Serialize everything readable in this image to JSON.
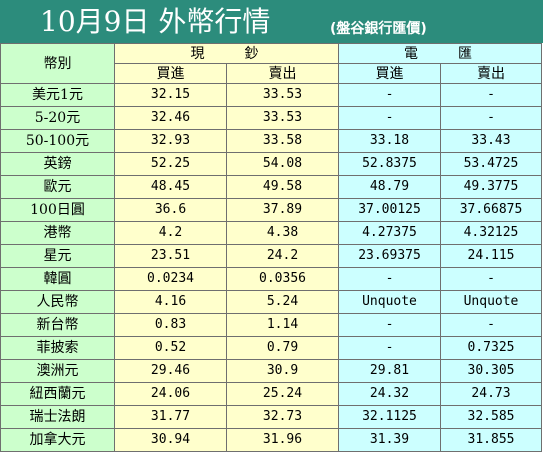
{
  "title": {
    "main": "10月9日 外幣行情",
    "source": "(盤谷銀行匯價)"
  },
  "table": {
    "currency_header": "幣別",
    "cash_header": "現　　鈔",
    "wire_header": "電　　匯",
    "buy_label": "買進",
    "sell_label": "賣出",
    "rows": [
      {
        "currency": "美元1元",
        "cash_buy": "32.15",
        "cash_sell": "33.53",
        "wire_buy": "-",
        "wire_sell": "-"
      },
      {
        "currency": "5-20元",
        "cash_buy": "32.46",
        "cash_sell": "33.53",
        "wire_buy": "-",
        "wire_sell": "-"
      },
      {
        "currency": "50-100元",
        "cash_buy": "32.93",
        "cash_sell": "33.58",
        "wire_buy": "33.18",
        "wire_sell": "33.43"
      },
      {
        "currency": "英鎊",
        "cash_buy": "52.25",
        "cash_sell": "54.08",
        "wire_buy": "52.8375",
        "wire_sell": "53.4725"
      },
      {
        "currency": "歐元",
        "cash_buy": "48.45",
        "cash_sell": "49.58",
        "wire_buy": "48.79",
        "wire_sell": "49.3775"
      },
      {
        "currency": "100日圓",
        "cash_buy": "36.6",
        "cash_sell": "37.89",
        "wire_buy": "37.00125",
        "wire_sell": "37.66875"
      },
      {
        "currency": "港幣",
        "cash_buy": "4.2",
        "cash_sell": "4.38",
        "wire_buy": "4.27375",
        "wire_sell": "4.32125"
      },
      {
        "currency": "星元",
        "cash_buy": "23.51",
        "cash_sell": "24.2",
        "wire_buy": "23.69375",
        "wire_sell": "24.115"
      },
      {
        "currency": "韓圓",
        "cash_buy": "0.0234",
        "cash_sell": "0.0356",
        "wire_buy": "-",
        "wire_sell": "-"
      },
      {
        "currency": "人民幣",
        "cash_buy": "4.16",
        "cash_sell": "5.24",
        "wire_buy": "Unquote",
        "wire_sell": "Unquote"
      },
      {
        "currency": "新台幣",
        "cash_buy": "0.83",
        "cash_sell": "1.14",
        "wire_buy": "-",
        "wire_sell": "-"
      },
      {
        "currency": "菲披索",
        "cash_buy": "0.52",
        "cash_sell": "0.79",
        "wire_buy": "-",
        "wire_sell": "0.7325"
      },
      {
        "currency": "澳洲元",
        "cash_buy": "29.46",
        "cash_sell": "30.9",
        "wire_buy": "29.81",
        "wire_sell": "30.305"
      },
      {
        "currency": "紐西蘭元",
        "cash_buy": "24.06",
        "cash_sell": "25.24",
        "wire_buy": "24.32",
        "wire_sell": "24.73"
      },
      {
        "currency": "瑞士法朗",
        "cash_buy": "31.77",
        "cash_sell": "32.73",
        "wire_buy": "32.1125",
        "wire_sell": "32.585"
      },
      {
        "currency": "加拿大元",
        "cash_buy": "30.94",
        "cash_sell": "31.96",
        "wire_buy": "31.39",
        "wire_sell": "31.855"
      }
    ]
  }
}
